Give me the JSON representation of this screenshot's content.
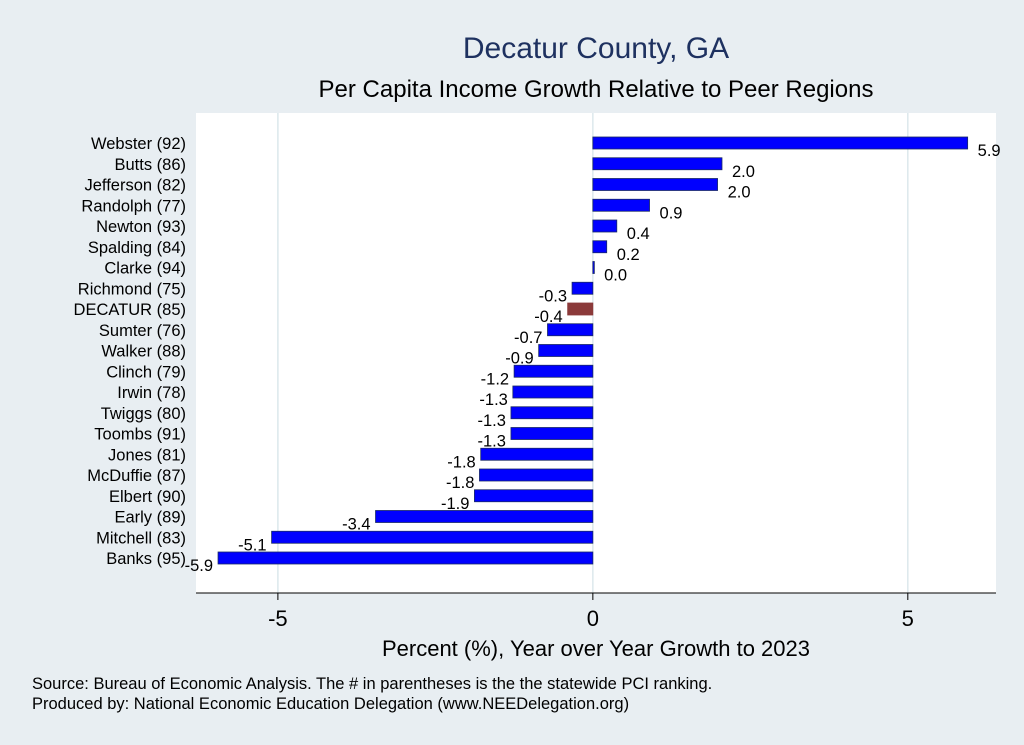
{
  "chart_data": {
    "type": "bar",
    "orientation": "horizontal",
    "title": "Decatur County, GA",
    "subtitle": "Per Capita Income Growth Relative to Peer Regions",
    "xlabel": "Percent (%), Year over Year Growth to 2023",
    "ylabel": "",
    "xlim": [
      -6.3,
      6.4
    ],
    "xticks": [
      {
        "value": -5,
        "label": "-5"
      },
      {
        "value": 0,
        "label": "0"
      },
      {
        "value": 5,
        "label": "5"
      }
    ],
    "grid": "vertical",
    "categories": [
      "Webster (92)",
      "Butts (86)",
      "Jefferson (82)",
      "Randolph (77)",
      "Newton (93)",
      "Spalding (84)",
      "Clarke (94)",
      "Richmond (75)",
      "DECATUR (85)",
      "Sumter (76)",
      "Walker (88)",
      "Clinch (79)",
      "Irwin (78)",
      "Twiggs (80)",
      "Toombs (91)",
      "Jones (81)",
      "McDuffie (87)",
      "Elbert (90)",
      "Early (89)",
      "Mitchell (83)",
      "Banks (95)"
    ],
    "values": [
      5.95,
      2.05,
      1.98,
      0.9,
      0.38,
      0.22,
      0.02,
      -0.33,
      -0.4,
      -0.72,
      -0.86,
      -1.25,
      -1.27,
      -1.3,
      -1.3,
      -1.78,
      -1.8,
      -1.88,
      -3.45,
      -5.1,
      -5.95
    ],
    "value_labels": [
      "5.9",
      "2.0",
      "2.0",
      "0.9",
      "0.4",
      "0.2",
      "0.0",
      "-0.3",
      "-0.4",
      "-0.7",
      "-0.9",
      "-1.2",
      "-1.3",
      "-1.3",
      "-1.3",
      "-1.8",
      "-1.8",
      "-1.9",
      "-3.4",
      "-5.1",
      "-5.9"
    ],
    "highlight": "DECATUR (85)",
    "colors": {
      "bar": "#0000ff",
      "bar_edge": "#1a2a66",
      "highlight": "#8b3a3a",
      "plot_bg": "#ffffff",
      "page_bg": "#e8eef2",
      "grid": "#dce8ec",
      "title": "#1e3160"
    }
  },
  "source_note": "Source: Bureau of Economic Analysis. The # in parentheses is the the statewide PCI ranking.",
  "producer_note": "Produced by: National Economic Education Delegation (www.NEEDelegation.org)"
}
